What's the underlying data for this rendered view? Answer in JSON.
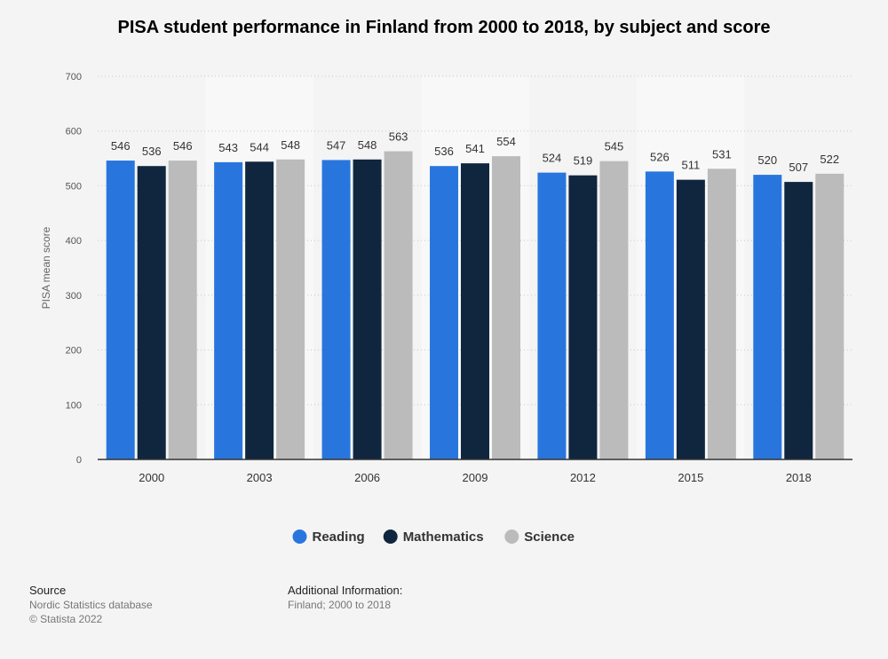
{
  "chart_data": {
    "type": "bar",
    "title": "PISA student performance in Finland from 2000 to 2018, by subject and score",
    "ylabel": "PISA mean score",
    "xlabel": "",
    "ylim": [
      0,
      700
    ],
    "yticks": [
      0,
      100,
      200,
      300,
      400,
      500,
      600,
      700
    ],
    "categories": [
      "2000",
      "2003",
      "2006",
      "2009",
      "2012",
      "2015",
      "2018"
    ],
    "series": [
      {
        "name": "Reading",
        "color": "#2876dd",
        "values": [
          546,
          543,
          547,
          536,
          524,
          526,
          520
        ]
      },
      {
        "name": "Mathematics",
        "color": "#10263f",
        "values": [
          536,
          544,
          548,
          541,
          519,
          511,
          507
        ]
      },
      {
        "name": "Science",
        "color": "#bbbbbb",
        "values": [
          546,
          548,
          563,
          554,
          545,
          531,
          522
        ]
      }
    ],
    "grid": true,
    "legend_position": "bottom"
  },
  "footer": {
    "source_heading": "Source",
    "source_lines": [
      "Nordic Statistics database",
      "© Statista 2022"
    ],
    "info_heading": "Additional Information:",
    "info_lines": [
      "Finland; 2000 to 2018"
    ]
  }
}
